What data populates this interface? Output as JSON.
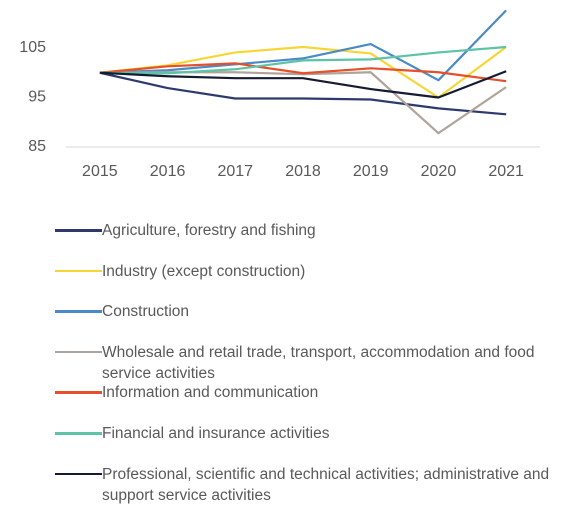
{
  "chart_data": {
    "type": "line",
    "x": [
      "2015",
      "2016",
      "2017",
      "2018",
      "2019",
      "2020",
      "2021"
    ],
    "ylim": [
      85,
      115
    ],
    "yticks": [
      85,
      95,
      105
    ],
    "grid": false,
    "legend": "bottom",
    "series": [
      {
        "name": "Agriculture, forestry and fishing",
        "color": "#2e3a6e",
        "values": [
          100,
          96.9,
          94.8,
          94.8,
          94.6,
          92.8,
          91.6
        ]
      },
      {
        "name": "Industry (except construction)",
        "color": "#f7d634",
        "values": [
          100,
          101.5,
          104.1,
          105.2,
          103.9,
          95,
          105.2
        ]
      },
      {
        "name": "Construction",
        "color": "#4a8ac6",
        "values": [
          100,
          100.5,
          101.7,
          102.9,
          105.8,
          98.5,
          112.6
        ]
      },
      {
        "name": "Wholesale and retail trade, transport, accommodation and food service activities",
        "color": "#b0a49a",
        "values": [
          100,
          100.1,
          100.1,
          99.7,
          100.1,
          87.8,
          97.1
        ]
      },
      {
        "name": "Information and communication",
        "color": "#e5502a",
        "values": [
          100,
          101.3,
          101.9,
          99.9,
          100.9,
          100.1,
          98.3
        ]
      },
      {
        "name": "Financial and insurance activities",
        "color": "#5cc3a8",
        "values": [
          100,
          99.9,
          100.7,
          102.5,
          102.7,
          104.1,
          105.2
        ]
      },
      {
        "name": "Professional, scientific and technical activities; administrative and support service activities",
        "color": "#151b33",
        "values": [
          100,
          99.3,
          98.9,
          98.9,
          96.7,
          95,
          100.3
        ]
      }
    ]
  }
}
